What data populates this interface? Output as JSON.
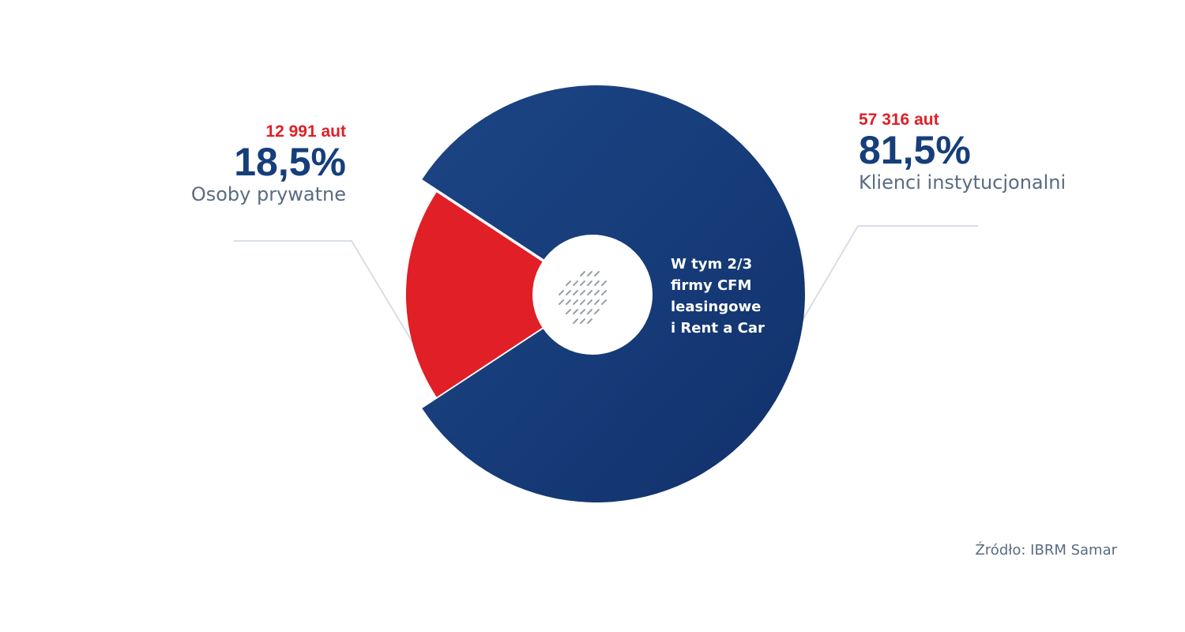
{
  "chart_data": {
    "type": "pie",
    "slices": [
      {
        "name": "Osoby prywatne",
        "percent_label": "18,5%",
        "value": 18.5,
        "count_label": "12 991 aut",
        "color": "#e01f26"
      },
      {
        "name": "Klienci instytucjonalni",
        "percent_label": "81,5%",
        "value": 81.5,
        "count_label": "57 316 aut",
        "color": "#163e7a"
      }
    ],
    "annotation_lines": [
      "W tym 2/3",
      "firmy CFM",
      "leasingowe",
      "i Rent a Car"
    ],
    "source": "Źródło: IBRM Samar"
  },
  "colors": {
    "accent_red": "#e01f26",
    "brand_blue": "#163e7a",
    "gray_text": "#5a6b82",
    "leader_line": "#d9dde6"
  },
  "icons": {
    "center_icon": "poland-map-icon"
  }
}
